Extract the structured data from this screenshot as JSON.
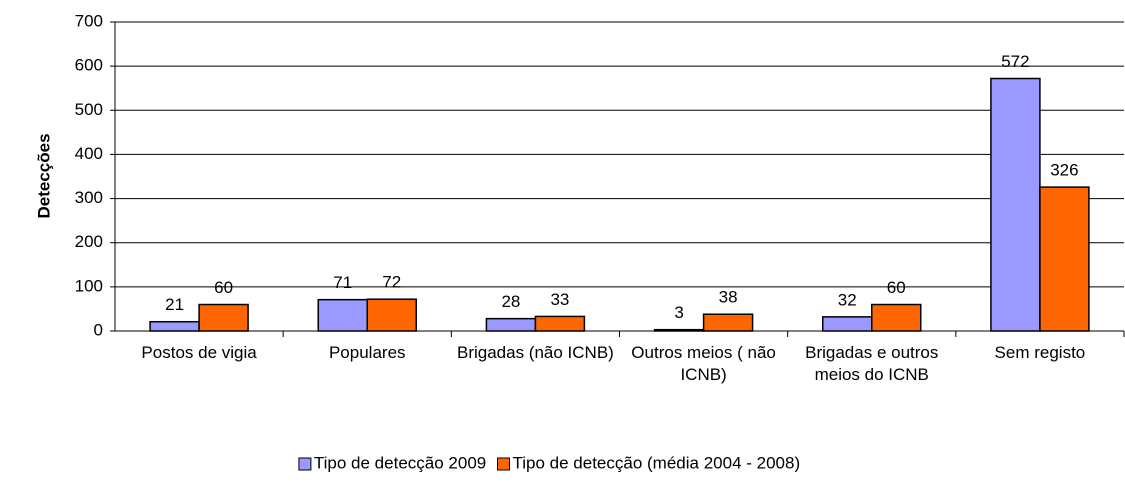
{
  "chart_data": {
    "type": "bar",
    "y_label": "Detecções",
    "categories": [
      "Postos de vigia",
      "Populares",
      "Brigadas (não ICNB)",
      "Outros meios ( não ICNB)",
      "Brigadas e outros meios do ICNB",
      "Sem registo"
    ],
    "series": [
      {
        "name": "Tipo de detecção 2009",
        "color": "#9999ff",
        "values": [
          21,
          71,
          28,
          3,
          32,
          572
        ]
      },
      {
        "name": "Tipo de detecção (média 2004 - 2008)",
        "color": "#ff6600",
        "values": [
          60,
          72,
          33,
          38,
          60,
          326
        ]
      }
    ],
    "ylim": [
      0,
      700
    ],
    "yticks": [
      0,
      100,
      200,
      300,
      400,
      500,
      600,
      700
    ],
    "grid": true,
    "legend": "bottom"
  }
}
